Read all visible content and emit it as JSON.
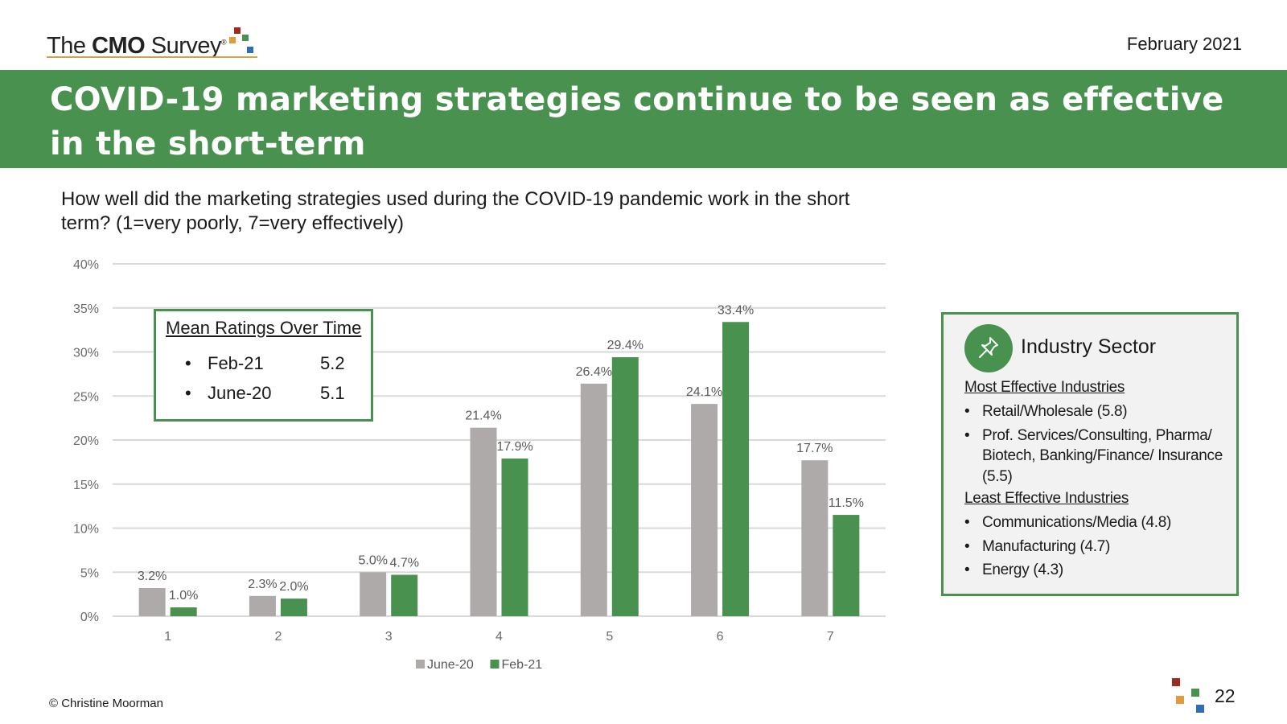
{
  "header": {
    "logo_prefix": "The ",
    "logo_bold": "CMO",
    "logo_suffix": " Survey",
    "logo_reg": "®",
    "date": "February 2021"
  },
  "banner": {
    "title": "COVID-19 marketing strategies continue to be seen as effective in the short-term"
  },
  "question": "How well did the marketing strategies used during the COVID-19 pandemic work in the short term? (1=very poorly, 7=very effectively)",
  "mean_box": {
    "title": "Mean Ratings Over Time",
    "rows": [
      {
        "label": "Feb-21",
        "value": "5.2"
      },
      {
        "label": "June-20",
        "value": "5.1"
      }
    ]
  },
  "sector_box": {
    "title": "Industry Sector",
    "most_heading": "Most Effective Industries",
    "most_items": [
      "Retail/Wholesale (5.8)",
      "Prof. Services/Consulting, Pharma/ Biotech, Banking/Finance/ Insurance (5.5)"
    ],
    "least_heading": "Least Effective Industries",
    "least_items": [
      "Communications/Media (4.8)",
      "Manufacturing (4.7)",
      "Energy (4.3)"
    ]
  },
  "footer": {
    "copyright": "© Christine Moorman",
    "page_number": "22"
  },
  "colors": {
    "green": "#48914f",
    "gray_bar": "#aeaaaa",
    "gridline": "#d9d9d9",
    "logo_red": "#a0281e",
    "logo_orange": "#e19b3c",
    "logo_green": "#48914f",
    "logo_blue": "#2e6fb4"
  },
  "chart_data": {
    "type": "bar",
    "categories": [
      "1",
      "2",
      "3",
      "4",
      "5",
      "6",
      "7"
    ],
    "series": [
      {
        "name": "June-20",
        "color": "#aeaaaa",
        "values": [
          3.2,
          2.3,
          5.0,
          21.4,
          26.4,
          24.1,
          17.7
        ]
      },
      {
        "name": "Feb-21",
        "color": "#48914f",
        "values": [
          1.0,
          2.0,
          4.7,
          17.9,
          29.4,
          33.4,
          11.5
        ]
      }
    ],
    "ylim": [
      0,
      40
    ],
    "yticks": [
      0,
      5,
      10,
      15,
      20,
      25,
      30,
      35,
      40
    ],
    "ytick_format": "%",
    "value_format": "0.1%",
    "grid": true,
    "legend_position": "bottom"
  }
}
